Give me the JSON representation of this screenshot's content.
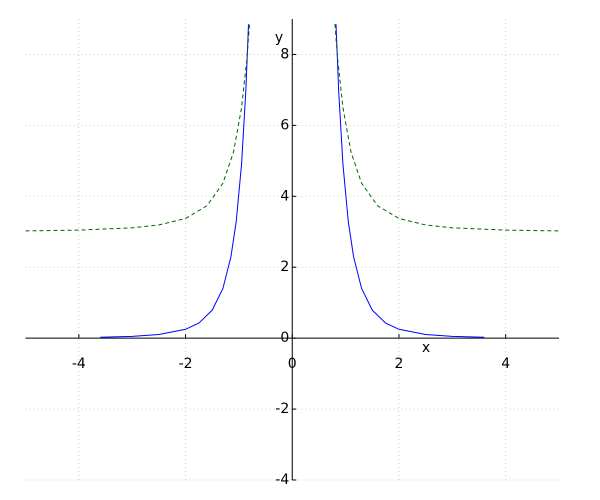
{
  "chart_data": {
    "type": "line",
    "x_label": "x",
    "y_label": "y",
    "xlim": [
      -5,
      5
    ],
    "ylim": [
      -4,
      9
    ],
    "xticks": [
      -4,
      -2,
      0,
      2,
      4
    ],
    "yticks": [
      -4,
      -2,
      0,
      2,
      4,
      6,
      8
    ],
    "grid": true,
    "series": [
      {
        "color": "#0000ff",
        "dash": false,
        "x": [
          -3.6,
          -3,
          -2.5,
          -2,
          -1.75,
          -1.5,
          -1.3,
          -1.15,
          -1.05,
          -0.95,
          -0.87,
          -0.82,
          0,
          0.82,
          0.87,
          0.95,
          1.05,
          1.15,
          1.3,
          1.5,
          1.75,
          2,
          2.5,
          3,
          3.6
        ],
        "values": [
          0.024,
          0.049,
          0.102,
          0.25,
          0.426,
          0.79,
          1.4,
          2.29,
          3.29,
          4.91,
          6.98,
          8.85,
          null,
          8.85,
          6.98,
          4.91,
          3.29,
          2.29,
          1.4,
          0.79,
          0.426,
          0.25,
          0.102,
          0.049,
          0.024
        ]
      },
      {
        "color": "#006400",
        "dash": true,
        "x": [
          -5,
          -4,
          -3,
          -2.5,
          -2,
          -1.6,
          -1.3,
          -1.1,
          -0.95,
          -0.85,
          -0.8,
          0,
          0.8,
          0.85,
          0.95,
          1.1,
          1.3,
          1.6,
          2,
          2.5,
          3,
          4,
          5
        ],
        "values": [
          3.024,
          3.047,
          3.111,
          3.192,
          3.375,
          3.732,
          4.366,
          5.254,
          6.5,
          7.88,
          8.86,
          null,
          8.86,
          7.88,
          6.5,
          5.254,
          4.366,
          3.732,
          3.375,
          3.192,
          3.111,
          3.047,
          3.024
        ]
      }
    ]
  }
}
